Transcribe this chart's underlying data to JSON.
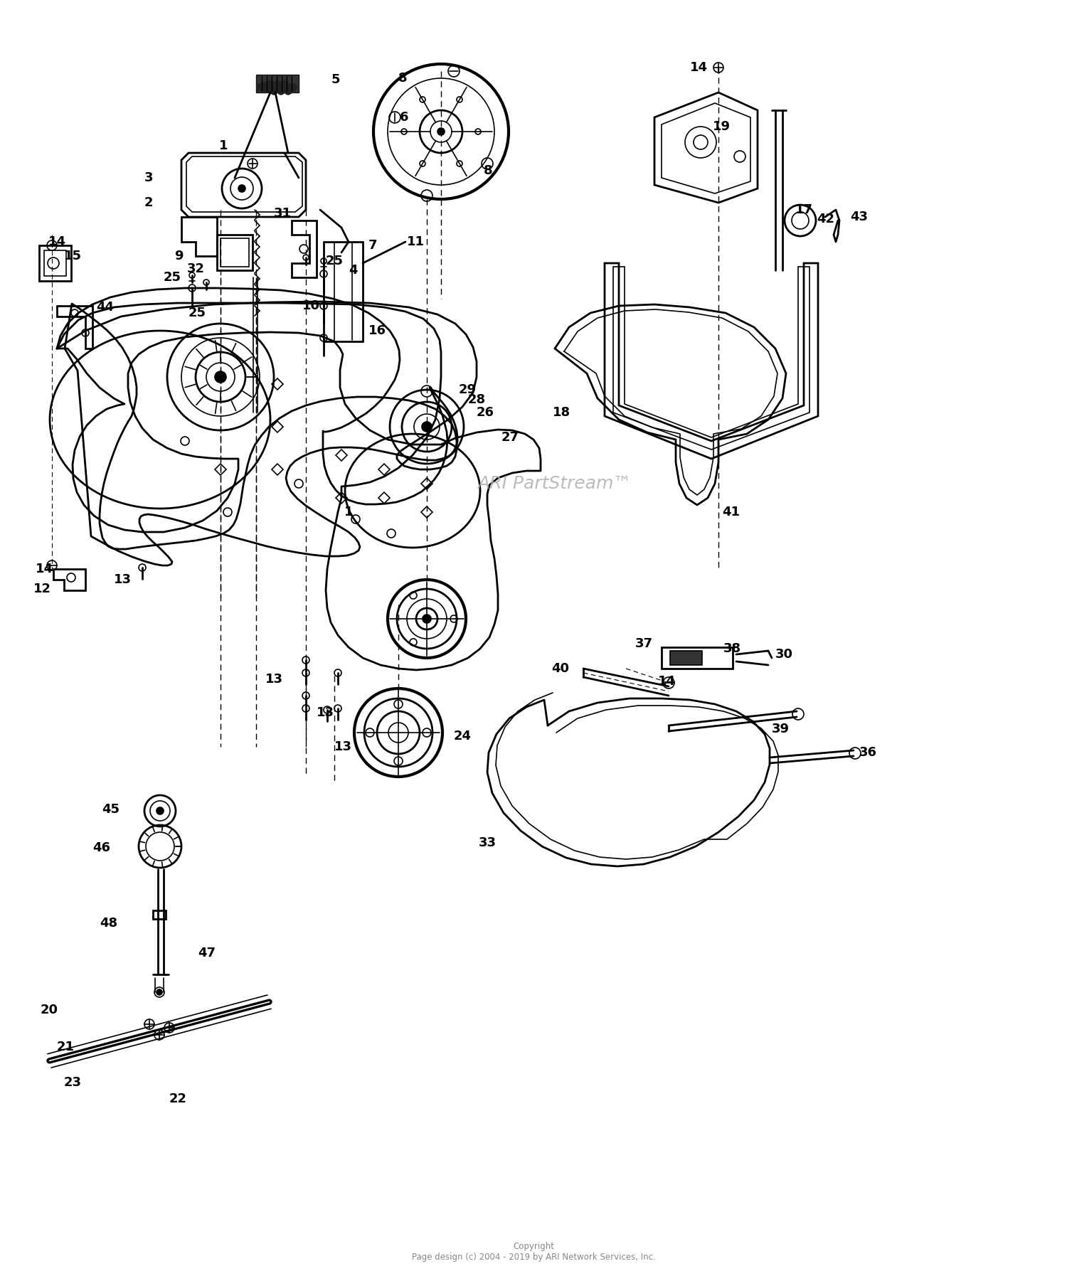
{
  "background_color": "#ffffff",
  "line_color": "#000000",
  "watermark_text": "ARI PartStream™",
  "watermark_color": "#b0b0b0",
  "copyright_text": "Copyright\nPage design (c) 2004 - 2019 by ARI Network Services, Inc.",
  "figsize": [
    15.0,
    17.94
  ],
  "dpi": 100
}
